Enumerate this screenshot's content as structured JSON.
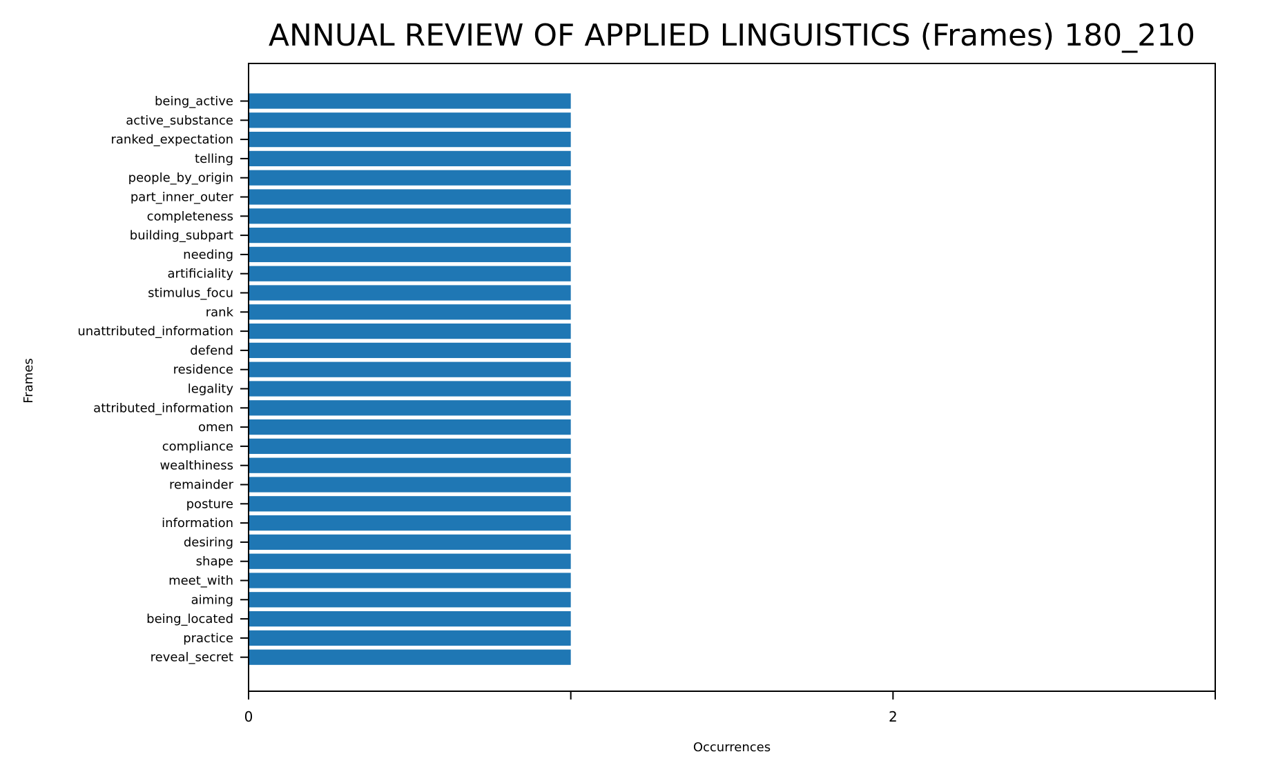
{
  "chart_data": {
    "type": "bar",
    "orientation": "horizontal",
    "title": "ANNUAL REVIEW OF APPLIED LINGUISTICS (Frames) 180_210",
    "xlabel": "Occurrences",
    "ylabel": "Frames",
    "xlim": [
      0,
      3
    ],
    "x_ticks": [
      0,
      1,
      2,
      3
    ],
    "x_tick_labels": [
      "0",
      "",
      "2",
      ""
    ],
    "grid": false,
    "bar_color": "#1f77b4",
    "categories": [
      "being_active",
      "active_substance",
      "ranked_expectation",
      "telling",
      "people_by_origin",
      "part_inner_outer",
      "completeness",
      "building_subpart",
      "needing",
      "artificiality",
      "stimulus_focu",
      "rank",
      "unattributed_information",
      "defend",
      "residence",
      "legality",
      "attributed_information",
      "omen",
      "compliance",
      "wealthiness",
      "remainder",
      "posture",
      "information",
      "desiring",
      "shape",
      "meet_with",
      "aiming",
      "being_located",
      "practice",
      "reveal_secret"
    ],
    "values": [
      1,
      1,
      1,
      1,
      1,
      1,
      1,
      1,
      1,
      1,
      1,
      1,
      1,
      1,
      1,
      1,
      1,
      1,
      1,
      1,
      1,
      1,
      1,
      1,
      1,
      1,
      1,
      1,
      1,
      1
    ]
  }
}
